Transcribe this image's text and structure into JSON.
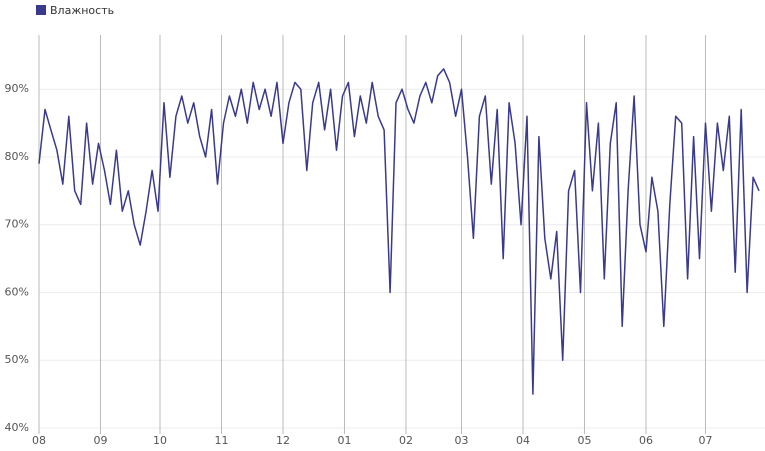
{
  "chart_data": {
    "type": "line",
    "legend": "top-left",
    "grid": true,
    "x": [
      0,
      3,
      6,
      9,
      12,
      15,
      18,
      21,
      24,
      27,
      30,
      33,
      36,
      39,
      42,
      45,
      48,
      51,
      54,
      57,
      60,
      63,
      66,
      69,
      72,
      75,
      78,
      81,
      84,
      87,
      90,
      93,
      96,
      99,
      102,
      105,
      108,
      111,
      114,
      117,
      120,
      123,
      126,
      129,
      132,
      135,
      138,
      141,
      144,
      147,
      150,
      153,
      156,
      159,
      162,
      165,
      168,
      171,
      174,
      177,
      180,
      183,
      186,
      189,
      192,
      195,
      198,
      201,
      204,
      207,
      210,
      213,
      216,
      219,
      222,
      225,
      228,
      231,
      234,
      237,
      240,
      243,
      246,
      249,
      252,
      255,
      258,
      261,
      264,
      267,
      270,
      273,
      276,
      279,
      282,
      285,
      288,
      291,
      294,
      297,
      300,
      303,
      306,
      309,
      312,
      315,
      318,
      321,
      324,
      327,
      330,
      333,
      336,
      339,
      342,
      345,
      348,
      351,
      354,
      357,
      360,
      363
    ],
    "series": [
      {
        "name": "Влажность",
        "color": "#3a3a8c",
        "values": [
          79,
          87,
          84,
          81,
          76,
          86,
          75,
          73,
          85,
          76,
          82,
          78,
          73,
          81,
          72,
          75,
          70,
          67,
          72,
          78,
          72,
          88,
          77,
          86,
          89,
          85,
          88,
          83,
          80,
          87,
          76,
          85,
          89,
          86,
          90,
          85,
          91,
          87,
          90,
          86,
          91,
          82,
          88,
          91,
          90,
          78,
          88,
          91,
          84,
          90,
          81,
          89,
          91,
          83,
          89,
          85,
          91,
          86,
          84,
          60,
          88,
          90,
          87,
          85,
          89,
          91,
          88,
          92,
          93,
          91,
          86,
          90,
          80,
          68,
          86,
          89,
          76,
          87,
          65,
          88,
          82,
          70,
          86,
          45,
          83,
          68,
          62,
          69,
          50,
          75,
          78,
          60,
          88,
          75,
          85,
          62,
          82,
          88,
          55,
          75,
          89,
          70,
          66,
          77,
          72,
          55,
          73,
          86,
          85,
          62,
          83,
          65,
          85,
          72,
          85,
          78,
          86,
          63,
          87,
          60,
          77,
          75
        ]
      }
    ],
    "xlim": [
      0,
      366
    ],
    "xticks": [
      {
        "value": 0,
        "label": "08"
      },
      {
        "value": 31,
        "label": "09"
      },
      {
        "value": 61,
        "label": "10"
      },
      {
        "value": 92,
        "label": "11"
      },
      {
        "value": 123,
        "label": "12"
      },
      {
        "value": 154,
        "label": "01"
      },
      {
        "value": 185,
        "label": "02"
      },
      {
        "value": 213,
        "label": "03"
      },
      {
        "value": 244,
        "label": "04"
      },
      {
        "value": 275,
        "label": "05"
      },
      {
        "value": 306,
        "label": "06"
      },
      {
        "value": 336,
        "label": "07"
      }
    ],
    "ylim": [
      40,
      98
    ],
    "yticks": [
      {
        "value": 40,
        "label": "40%"
      },
      {
        "value": 50,
        "label": "50%"
      },
      {
        "value": 60,
        "label": "60%"
      },
      {
        "value": 70,
        "label": "70%"
      },
      {
        "value": 80,
        "label": "80%"
      },
      {
        "value": 90,
        "label": "90%"
      }
    ]
  }
}
